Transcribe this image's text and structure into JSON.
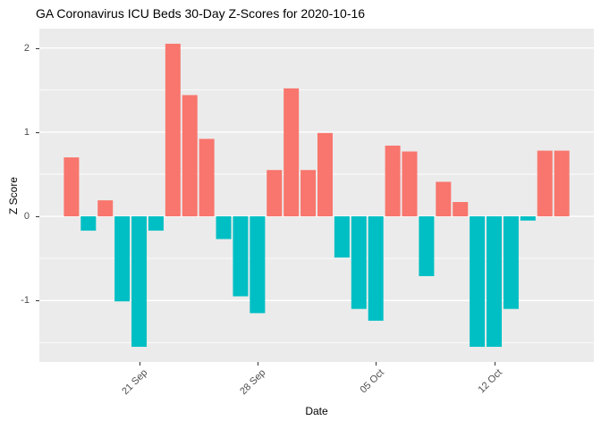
{
  "chart_data": {
    "type": "bar",
    "title": "GA Coronavirus ICU Beds 30-Day Z-Scores for 2020-10-16",
    "xlabel": "Date",
    "ylabel": "Z Score",
    "x": [
      "2020-09-17",
      "2020-09-18",
      "2020-09-19",
      "2020-09-20",
      "2020-09-21",
      "2020-09-22",
      "2020-09-23",
      "2020-09-24",
      "2020-09-25",
      "2020-09-26",
      "2020-09-27",
      "2020-09-28",
      "2020-09-29",
      "2020-09-30",
      "2020-10-01",
      "2020-10-02",
      "2020-10-03",
      "2020-10-04",
      "2020-10-05",
      "2020-10-06",
      "2020-10-07",
      "2020-10-08",
      "2020-10-09",
      "2020-10-10",
      "2020-10-11",
      "2020-10-12",
      "2020-10-13",
      "2020-10-14",
      "2020-10-15",
      "2020-10-16"
    ],
    "values": [
      0.7,
      -0.17,
      0.19,
      -1.01,
      -1.55,
      -0.17,
      2.05,
      1.44,
      0.92,
      -0.27,
      -0.95,
      -1.15,
      0.55,
      1.52,
      0.55,
      0.99,
      -0.49,
      -1.1,
      -1.24,
      0.84,
      0.77,
      -0.71,
      0.41,
      0.17,
      -1.55,
      -1.55,
      -1.1,
      -0.05,
      0.78,
      0.78
    ],
    "x_ticks": [
      {
        "label": "21 Sep",
        "date": "2020-09-21"
      },
      {
        "label": "28 Sep",
        "date": "2020-09-28"
      },
      {
        "label": "05 Oct",
        "date": "2020-10-05"
      },
      {
        "label": "12 Oct",
        "date": "2020-10-12"
      }
    ],
    "y_ticks": [
      2,
      1,
      0,
      -1
    ],
    "y_minor_ticks": [
      1.5,
      0.5,
      -0.5,
      -1.5
    ],
    "ylim": [
      -1.73,
      2.23
    ],
    "grid": true,
    "legend_position": "none",
    "colors": {
      "positive": "#F8766D",
      "negative": "#00BFC4",
      "panel_background": "#EBEBEB",
      "gridline": "#FFFFFF",
      "axis_text": "#4D4D4D",
      "tick_mark": "#333333",
      "title_text": "#000000"
    }
  }
}
